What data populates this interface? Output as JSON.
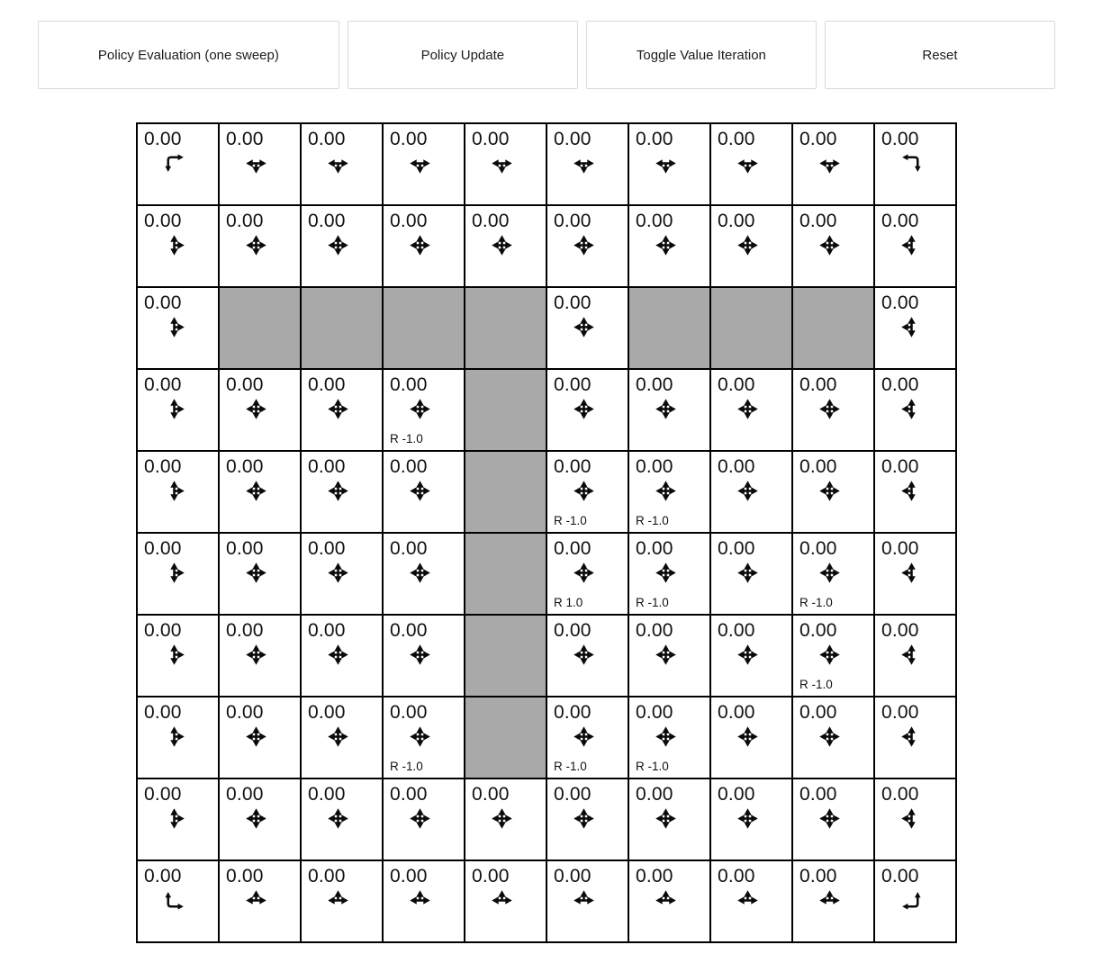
{
  "toolbar": {
    "buttons": [
      {
        "label": "Policy Evaluation (one sweep)"
      },
      {
        "label": "Policy Update"
      },
      {
        "label": "Toggle Value Iteration"
      },
      {
        "label": "Reset"
      }
    ]
  },
  "colors": {
    "wall": "#a9a9a9",
    "grid_border": "#000000",
    "button_border": "#d9d9d9",
    "text": "#111111"
  },
  "grid": {
    "rows": 10,
    "cols": 10,
    "cells": [
      [
        {
          "v": "0.00",
          "dirs": "dr"
        },
        {
          "v": "0.00",
          "dirs": "lrd"
        },
        {
          "v": "0.00",
          "dirs": "lrd"
        },
        {
          "v": "0.00",
          "dirs": "lrd"
        },
        {
          "v": "0.00",
          "dirs": "lrd"
        },
        {
          "v": "0.00",
          "dirs": "lrd"
        },
        {
          "v": "0.00",
          "dirs": "lrd"
        },
        {
          "v": "0.00",
          "dirs": "lrd"
        },
        {
          "v": "0.00",
          "dirs": "lrd"
        },
        {
          "v": "0.00",
          "dirs": "dl"
        }
      ],
      [
        {
          "v": "0.00",
          "dirs": "udr"
        },
        {
          "v": "0.00",
          "dirs": "udlr"
        },
        {
          "v": "0.00",
          "dirs": "udlr"
        },
        {
          "v": "0.00",
          "dirs": "udlr"
        },
        {
          "v": "0.00",
          "dirs": "udlr"
        },
        {
          "v": "0.00",
          "dirs": "udlr"
        },
        {
          "v": "0.00",
          "dirs": "udlr"
        },
        {
          "v": "0.00",
          "dirs": "udlr"
        },
        {
          "v": "0.00",
          "dirs": "udlr"
        },
        {
          "v": "0.00",
          "dirs": "udl"
        }
      ],
      [
        {
          "v": "0.00",
          "dirs": "udr"
        },
        {
          "wall": true
        },
        {
          "wall": true
        },
        {
          "wall": true
        },
        {
          "wall": true
        },
        {
          "v": "0.00",
          "dirs": "udlr"
        },
        {
          "wall": true
        },
        {
          "wall": true
        },
        {
          "wall": true
        },
        {
          "v": "0.00",
          "dirs": "udl"
        }
      ],
      [
        {
          "v": "0.00",
          "dirs": "udr"
        },
        {
          "v": "0.00",
          "dirs": "udlr"
        },
        {
          "v": "0.00",
          "dirs": "udlr"
        },
        {
          "v": "0.00",
          "dirs": "udlr",
          "r": "R -1.0"
        },
        {
          "wall": true
        },
        {
          "v": "0.00",
          "dirs": "udlr"
        },
        {
          "v": "0.00",
          "dirs": "udlr"
        },
        {
          "v": "0.00",
          "dirs": "udlr"
        },
        {
          "v": "0.00",
          "dirs": "udlr"
        },
        {
          "v": "0.00",
          "dirs": "udl"
        }
      ],
      [
        {
          "v": "0.00",
          "dirs": "udr"
        },
        {
          "v": "0.00",
          "dirs": "udlr"
        },
        {
          "v": "0.00",
          "dirs": "udlr"
        },
        {
          "v": "0.00",
          "dirs": "udlr"
        },
        {
          "wall": true
        },
        {
          "v": "0.00",
          "dirs": "udlr",
          "r": "R -1.0"
        },
        {
          "v": "0.00",
          "dirs": "udlr",
          "r": "R -1.0"
        },
        {
          "v": "0.00",
          "dirs": "udlr"
        },
        {
          "v": "0.00",
          "dirs": "udlr"
        },
        {
          "v": "0.00",
          "dirs": "udl"
        }
      ],
      [
        {
          "v": "0.00",
          "dirs": "udr"
        },
        {
          "v": "0.00",
          "dirs": "udlr"
        },
        {
          "v": "0.00",
          "dirs": "udlr"
        },
        {
          "v": "0.00",
          "dirs": "udlr"
        },
        {
          "wall": true
        },
        {
          "v": "0.00",
          "dirs": "udlr",
          "r": "R 1.0"
        },
        {
          "v": "0.00",
          "dirs": "udlr",
          "r": "R -1.0"
        },
        {
          "v": "0.00",
          "dirs": "udlr"
        },
        {
          "v": "0.00",
          "dirs": "udlr",
          "r": "R -1.0"
        },
        {
          "v": "0.00",
          "dirs": "udl"
        }
      ],
      [
        {
          "v": "0.00",
          "dirs": "udr"
        },
        {
          "v": "0.00",
          "dirs": "udlr"
        },
        {
          "v": "0.00",
          "dirs": "udlr"
        },
        {
          "v": "0.00",
          "dirs": "udlr"
        },
        {
          "wall": true
        },
        {
          "v": "0.00",
          "dirs": "udlr"
        },
        {
          "v": "0.00",
          "dirs": "udlr"
        },
        {
          "v": "0.00",
          "dirs": "udlr"
        },
        {
          "v": "0.00",
          "dirs": "udlr",
          "r": "R -1.0"
        },
        {
          "v": "0.00",
          "dirs": "udl"
        }
      ],
      [
        {
          "v": "0.00",
          "dirs": "udr"
        },
        {
          "v": "0.00",
          "dirs": "udlr"
        },
        {
          "v": "0.00",
          "dirs": "udlr"
        },
        {
          "v": "0.00",
          "dirs": "udlr",
          "r": "R -1.0"
        },
        {
          "wall": true
        },
        {
          "v": "0.00",
          "dirs": "udlr",
          "r": "R -1.0"
        },
        {
          "v": "0.00",
          "dirs": "udlr",
          "r": "R -1.0"
        },
        {
          "v": "0.00",
          "dirs": "udlr"
        },
        {
          "v": "0.00",
          "dirs": "udlr"
        },
        {
          "v": "0.00",
          "dirs": "udl"
        }
      ],
      [
        {
          "v": "0.00",
          "dirs": "udr"
        },
        {
          "v": "0.00",
          "dirs": "udlr"
        },
        {
          "v": "0.00",
          "dirs": "udlr"
        },
        {
          "v": "0.00",
          "dirs": "udlr"
        },
        {
          "v": "0.00",
          "dirs": "udlr"
        },
        {
          "v": "0.00",
          "dirs": "udlr"
        },
        {
          "v": "0.00",
          "dirs": "udlr"
        },
        {
          "v": "0.00",
          "dirs": "udlr"
        },
        {
          "v": "0.00",
          "dirs": "udlr"
        },
        {
          "v": "0.00",
          "dirs": "udl"
        }
      ],
      [
        {
          "v": "0.00",
          "dirs": "ur"
        },
        {
          "v": "0.00",
          "dirs": "lru"
        },
        {
          "v": "0.00",
          "dirs": "lru"
        },
        {
          "v": "0.00",
          "dirs": "lru"
        },
        {
          "v": "0.00",
          "dirs": "lru"
        },
        {
          "v": "0.00",
          "dirs": "lru"
        },
        {
          "v": "0.00",
          "dirs": "lru"
        },
        {
          "v": "0.00",
          "dirs": "lru"
        },
        {
          "v": "0.00",
          "dirs": "lru"
        },
        {
          "v": "0.00",
          "dirs": "ul"
        }
      ]
    ]
  }
}
